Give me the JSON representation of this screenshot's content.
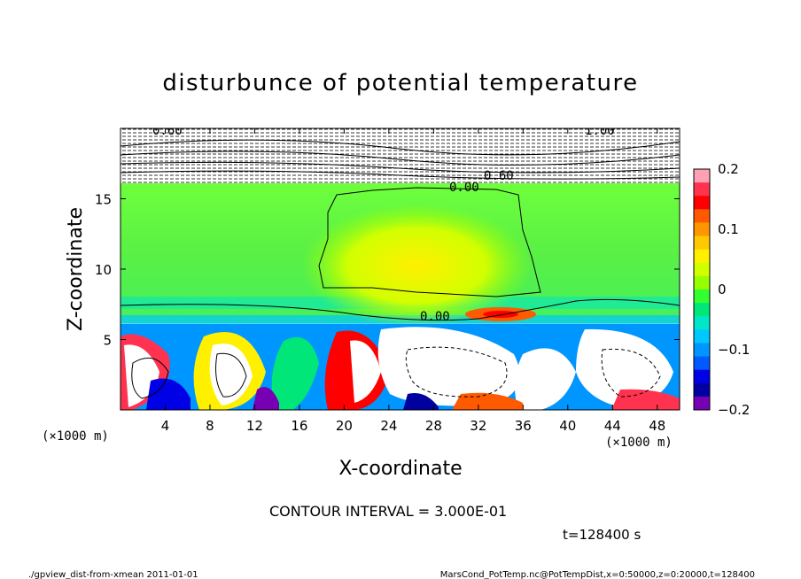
{
  "chart_data": {
    "type": "heatmap",
    "title": "disturbunce of potential temperature",
    "xlabel": "X-coordinate",
    "ylabel": "Z-coordinate",
    "x_unit": "(×1000 m)",
    "z_unit": "(×1000 m)",
    "xlim": [
      0,
      50
    ],
    "zlim": [
      0,
      20
    ],
    "x_ticks": [
      "4",
      "8",
      "12",
      "16",
      "20",
      "24",
      "28",
      "32",
      "36",
      "40",
      "44",
      "48"
    ],
    "z_ticks": [
      "5",
      "10",
      "15"
    ],
    "colorbar": {
      "range": [
        -0.2,
        0.2
      ],
      "tick_labels": [
        "0.2",
        "0.1",
        "0",
        "−0.1",
        "−0.2"
      ],
      "colors": [
        "#FFA0B4",
        "#FF3250",
        "#FF0000",
        "#FF5A00",
        "#FF9600",
        "#FFC800",
        "#FFF000",
        "#D2FF00",
        "#96FF00",
        "#32FF32",
        "#00E678",
        "#00E6C8",
        "#00C8FF",
        "#0096FF",
        "#005AFF",
        "#0000E6",
        "#0000A0",
        "#7800B4"
      ]
    },
    "contour_labels": [
      "0.60",
      "1.00",
      "0.60",
      "0.00",
      "0.00"
    ],
    "contour_interval": "CONTOUR INTERVAL = 3.000E-01"
  },
  "time_label": "t=128400 s",
  "footer": {
    "left": "./gpview_dist-from-xmean   2011-01-01",
    "right": "MarsCond_PotTemp.nc@PotTempDist,x=0:50000,z=0:20000,t=128400"
  }
}
